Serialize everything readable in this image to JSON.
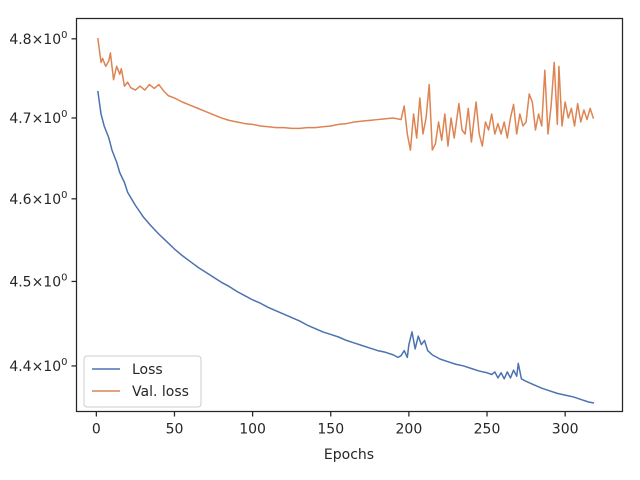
{
  "chart_data": {
    "type": "line",
    "xlabel": "Epochs",
    "ylabel": "",
    "yscale": "log",
    "xlim": [
      -12.7,
      336.7
    ],
    "ylim": [
      4.347,
      4.826
    ],
    "x_ticks": [
      0,
      50,
      100,
      150,
      200,
      250,
      300
    ],
    "x_tick_labels": [
      "0",
      "50",
      "100",
      "150",
      "200",
      "250",
      "300"
    ],
    "y_ticks": [
      4.4,
      4.5,
      4.6,
      4.7,
      4.8
    ],
    "y_tick_labels": [
      {
        "mantissa": "4.4",
        "base": "10",
        "exp": "0"
      },
      {
        "mantissa": "4.5",
        "base": "10",
        "exp": "0"
      },
      {
        "mantissa": "4.6",
        "base": "10",
        "exp": "0"
      },
      {
        "mantissa": "4.7",
        "base": "10",
        "exp": "0"
      },
      {
        "mantissa": "4.8",
        "base": "10",
        "exp": "0"
      }
    ],
    "grid": false,
    "legend_position": "lower-left",
    "series": [
      {
        "name": "Loss",
        "color": "#4c72b0",
        "points": [
          [
            1,
            4.733
          ],
          [
            3,
            4.705
          ],
          [
            5,
            4.69
          ],
          [
            8,
            4.675
          ],
          [
            10,
            4.66
          ],
          [
            13,
            4.645
          ],
          [
            15,
            4.632
          ],
          [
            18,
            4.62
          ],
          [
            20,
            4.608
          ],
          [
            25,
            4.592
          ],
          [
            30,
            4.578
          ],
          [
            35,
            4.567
          ],
          [
            40,
            4.557
          ],
          [
            45,
            4.548
          ],
          [
            50,
            4.539
          ],
          [
            55,
            4.531
          ],
          [
            60,
            4.524
          ],
          [
            65,
            4.517
          ],
          [
            70,
            4.511
          ],
          [
            75,
            4.505
          ],
          [
            80,
            4.499
          ],
          [
            85,
            4.494
          ],
          [
            90,
            4.488
          ],
          [
            95,
            4.483
          ],
          [
            100,
            4.478
          ],
          [
            105,
            4.474
          ],
          [
            110,
            4.469
          ],
          [
            115,
            4.465
          ],
          [
            120,
            4.461
          ],
          [
            125,
            4.457
          ],
          [
            130,
            4.453
          ],
          [
            135,
            4.448
          ],
          [
            140,
            4.444
          ],
          [
            145,
            4.44
          ],
          [
            150,
            4.437
          ],
          [
            155,
            4.434
          ],
          [
            160,
            4.43
          ],
          [
            165,
            4.427
          ],
          [
            170,
            4.424
          ],
          [
            175,
            4.421
          ],
          [
            180,
            4.418
          ],
          [
            185,
            4.416
          ],
          [
            190,
            4.413
          ],
          [
            193,
            4.41
          ],
          [
            195,
            4.412
          ],
          [
            197,
            4.418
          ],
          [
            199,
            4.41
          ],
          [
            200,
            4.425
          ],
          [
            202,
            4.44
          ],
          [
            204,
            4.42
          ],
          [
            206,
            4.435
          ],
          [
            208,
            4.425
          ],
          [
            210,
            4.43
          ],
          [
            212,
            4.418
          ],
          [
            215,
            4.413
          ],
          [
            218,
            4.41
          ],
          [
            220,
            4.408
          ],
          [
            225,
            4.405
          ],
          [
            230,
            4.402
          ],
          [
            235,
            4.4
          ],
          [
            240,
            4.397
          ],
          [
            245,
            4.394
          ],
          [
            250,
            4.392
          ],
          [
            253,
            4.39
          ],
          [
            255,
            4.393
          ],
          [
            257,
            4.386
          ],
          [
            259,
            4.392
          ],
          [
            261,
            4.385
          ],
          [
            263,
            4.393
          ],
          [
            265,
            4.386
          ],
          [
            267,
            4.395
          ],
          [
            269,
            4.388
          ],
          [
            270,
            4.403
          ],
          [
            272,
            4.385
          ],
          [
            275,
            4.382
          ],
          [
            280,
            4.378
          ],
          [
            285,
            4.374
          ],
          [
            290,
            4.371
          ],
          [
            295,
            4.368
          ],
          [
            300,
            4.366
          ],
          [
            305,
            4.364
          ],
          [
            310,
            4.361
          ],
          [
            315,
            4.358
          ],
          [
            318,
            4.357
          ]
        ]
      },
      {
        "name": "Val. loss",
        "color": "#dd8452",
        "points": [
          [
            1,
            4.8
          ],
          [
            3,
            4.77
          ],
          [
            4,
            4.775
          ],
          [
            6,
            4.765
          ],
          [
            8,
            4.772
          ],
          [
            9,
            4.782
          ],
          [
            11,
            4.748
          ],
          [
            13,
            4.765
          ],
          [
            15,
            4.755
          ],
          [
            16,
            4.762
          ],
          [
            18,
            4.74
          ],
          [
            20,
            4.745
          ],
          [
            22,
            4.738
          ],
          [
            25,
            4.735
          ],
          [
            28,
            4.74
          ],
          [
            31,
            4.735
          ],
          [
            34,
            4.742
          ],
          [
            37,
            4.737
          ],
          [
            40,
            4.742
          ],
          [
            43,
            4.734
          ],
          [
            46,
            4.728
          ],
          [
            50,
            4.725
          ],
          [
            55,
            4.72
          ],
          [
            60,
            4.716
          ],
          [
            65,
            4.712
          ],
          [
            70,
            4.708
          ],
          [
            75,
            4.704
          ],
          [
            80,
            4.7
          ],
          [
            85,
            4.697
          ],
          [
            90,
            4.695
          ],
          [
            95,
            4.693
          ],
          [
            100,
            4.692
          ],
          [
            105,
            4.69
          ],
          [
            110,
            4.689
          ],
          [
            115,
            4.688
          ],
          [
            120,
            4.688
          ],
          [
            125,
            4.687
          ],
          [
            130,
            4.687
          ],
          [
            135,
            4.688
          ],
          [
            140,
            4.688
          ],
          [
            145,
            4.689
          ],
          [
            150,
            4.69
          ],
          [
            155,
            4.692
          ],
          [
            160,
            4.693
          ],
          [
            165,
            4.695
          ],
          [
            170,
            4.696
          ],
          [
            175,
            4.697
          ],
          [
            180,
            4.698
          ],
          [
            185,
            4.699
          ],
          [
            190,
            4.7
          ],
          [
            195,
            4.698
          ],
          [
            197,
            4.715
          ],
          [
            199,
            4.68
          ],
          [
            201,
            4.66
          ],
          [
            203,
            4.705
          ],
          [
            205,
            4.675
          ],
          [
            207,
            4.725
          ],
          [
            209,
            4.68
          ],
          [
            211,
            4.7
          ],
          [
            213,
            4.742
          ],
          [
            215,
            4.66
          ],
          [
            217,
            4.668
          ],
          [
            219,
            4.695
          ],
          [
            221,
            4.672
          ],
          [
            223,
            4.705
          ],
          [
            225,
            4.665
          ],
          [
            227,
            4.7
          ],
          [
            229,
            4.675
          ],
          [
            232,
            4.718
          ],
          [
            234,
            4.685
          ],
          [
            236,
            4.68
          ],
          [
            238,
            4.712
          ],
          [
            240,
            4.67
          ],
          [
            243,
            4.72
          ],
          [
            245,
            4.68
          ],
          [
            247,
            4.665
          ],
          [
            249,
            4.695
          ],
          [
            251,
            4.685
          ],
          [
            253,
            4.705
          ],
          [
            255,
            4.68
          ],
          [
            257,
            4.693
          ],
          [
            259,
            4.68
          ],
          [
            261,
            4.695
          ],
          [
            263,
            4.675
          ],
          [
            265,
            4.7
          ],
          [
            267,
            4.717
          ],
          [
            269,
            4.68
          ],
          [
            271,
            4.705
          ],
          [
            273,
            4.69
          ],
          [
            275,
            4.695
          ],
          [
            277,
            4.73
          ],
          [
            279,
            4.72
          ],
          [
            281,
            4.685
          ],
          [
            283,
            4.705
          ],
          [
            285,
            4.69
          ],
          [
            287,
            4.76
          ],
          [
            289,
            4.68
          ],
          [
            291,
            4.715
          ],
          [
            293,
            4.77
          ],
          [
            295,
            4.692
          ],
          [
            296,
            4.765
          ],
          [
            298,
            4.69
          ],
          [
            300,
            4.72
          ],
          [
            302,
            4.7
          ],
          [
            304,
            4.712
          ],
          [
            306,
            4.69
          ],
          [
            308,
            4.718
          ],
          [
            310,
            4.695
          ],
          [
            312,
            4.71
          ],
          [
            314,
            4.698
          ],
          [
            316,
            4.712
          ],
          [
            318,
            4.7
          ]
        ]
      }
    ]
  }
}
